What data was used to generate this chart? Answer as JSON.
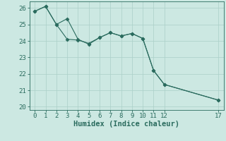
{
  "xlabel": "Humidex (Indice chaleur)",
  "line1_x": [
    0,
    1,
    2,
    3,
    4,
    5,
    6,
    7,
    8,
    9,
    10,
    11,
    12,
    17
  ],
  "line1_y": [
    25.8,
    26.1,
    25.0,
    25.35,
    24.1,
    23.8,
    24.2,
    24.5,
    24.3,
    24.45,
    24.15,
    22.2,
    21.35,
    20.4
  ],
  "line2_x": [
    0,
    1,
    2,
    3,
    4,
    5,
    6,
    7,
    8,
    9,
    10,
    11,
    12,
    17
  ],
  "line2_y": [
    25.8,
    26.1,
    25.0,
    24.1,
    24.05,
    23.85,
    24.2,
    24.5,
    24.3,
    24.45,
    24.15,
    22.2,
    21.35,
    20.4
  ],
  "line_color": "#2a6b5e",
  "marker": "D",
  "marker_size": 2.5,
  "xlim": [
    -0.5,
    17.5
  ],
  "ylim": [
    19.8,
    26.4
  ],
  "yticks": [
    20,
    21,
    22,
    23,
    24,
    25,
    26
  ],
  "xticks": [
    0,
    1,
    2,
    3,
    4,
    5,
    6,
    7,
    8,
    9,
    10,
    11,
    12,
    17
  ],
  "bg_color": "#cce8e2",
  "grid_color": "#aacfc8",
  "tick_label_fontsize": 6.5,
  "xlabel_fontsize": 7.5,
  "line_width": 0.8
}
